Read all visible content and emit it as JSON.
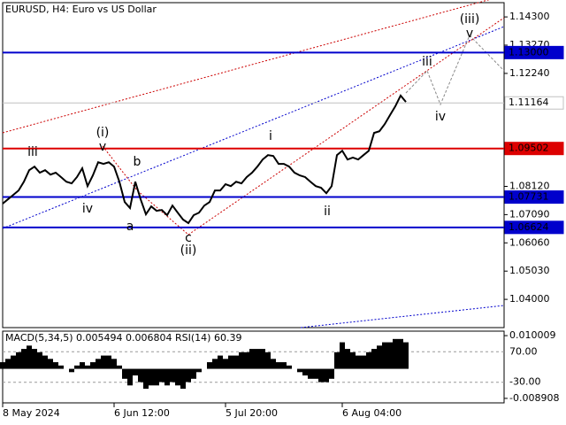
{
  "chart_data": [
    {
      "type": "line",
      "title": "EURUSD, H4:  Euro vs US Dollar",
      "color": "#000000",
      "x": [
        0,
        1,
        2,
        3,
        4,
        5,
        6,
        7,
        8,
        9,
        10,
        11,
        12,
        13,
        14,
        15,
        16,
        17,
        18,
        19,
        20,
        21,
        22,
        23,
        24,
        25,
        26,
        27,
        28,
        29,
        30,
        31,
        32,
        33,
        34,
        35,
        36,
        37,
        38,
        39,
        40,
        41,
        42,
        43,
        44,
        45,
        46,
        47,
        48,
        49,
        50,
        51,
        52,
        53,
        54,
        55,
        56,
        57,
        58,
        59,
        60,
        61,
        62,
        63,
        64,
        65,
        66,
        67,
        68,
        69,
        70,
        71,
        72,
        73,
        74,
        75,
        76
      ],
      "values": [
        1.0749,
        1.0765,
        1.0781,
        1.0797,
        1.0829,
        1.0871,
        1.0884,
        1.0862,
        1.0871,
        1.0855,
        1.0862,
        1.0846,
        1.0829,
        1.0823,
        1.0846,
        1.0878,
        1.0813,
        1.0852,
        1.09,
        1.0894,
        1.09,
        1.0884,
        1.0829,
        1.0755,
        1.0733,
        1.0829,
        1.0765,
        1.071,
        1.0739,
        1.0723,
        1.0726,
        1.0707,
        1.0742,
        1.0716,
        1.0691,
        1.0678,
        1.0707,
        1.0716,
        1.0742,
        1.0755,
        1.0797,
        1.0797,
        1.082,
        1.0813,
        1.0829,
        1.0823,
        1.0846,
        1.0862,
        1.0884,
        1.091,
        1.0926,
        1.0923,
        1.0894,
        1.0894,
        1.0884,
        1.0862,
        1.0852,
        1.0846,
        1.0829,
        1.0813,
        1.0807,
        1.0787,
        1.0813,
        1.0926,
        1.0942,
        1.091,
        1.0917,
        1.091,
        1.0926,
        1.0942,
        1.1007,
        1.1013,
        1.1039,
        1.1072,
        1.1104,
        1.1143,
        1.112
      ],
      "xlim": [
        0,
        94.5
      ],
      "xticks": [
        {
          "value": 0,
          "label": "8 May 2024"
        },
        {
          "value": 21,
          "label": "6 Jun 12:00"
        },
        {
          "value": 42,
          "label": "5 Jul 20:00"
        },
        {
          "value": 64,
          "label": "6 Aug 04:00"
        }
      ],
      "ylim": [
        1.0297,
        1.1482
      ],
      "yticks": [
        {
          "value": 1.143,
          "label": "1.14300"
        },
        {
          "value": 1.1327,
          "label": "1.13270"
        },
        {
          "value": 1.1224,
          "label": "1.12240"
        },
        {
          "value": 1.0812,
          "label": "1.08120"
        },
        {
          "value": 1.0709,
          "label": "1.07090"
        },
        {
          "value": 1.0606,
          "label": "1.06060"
        },
        {
          "value": 1.0503,
          "label": "1.05030"
        },
        {
          "value": 1.04,
          "label": "1.04000"
        }
      ],
      "levels": [
        {
          "value": 1.13,
          "label": "1.13000",
          "color": "#0000cc"
        },
        {
          "value": 1.11164,
          "label": "1.11164",
          "color": "#c0c0c0"
        },
        {
          "value": 1.09502,
          "label": "1.09502",
          "color": "#dd0000"
        },
        {
          "value": 1.07731,
          "label": "1.07731",
          "color": "#0000cc"
        },
        {
          "value": 1.06624,
          "label": "1.06624",
          "color": "#0000cc"
        }
      ],
      "annotations": [
        {
          "text": "iii",
          "color": "#555555"
        },
        {
          "text": "(i)",
          "color": "#cc0000"
        },
        {
          "text": "v",
          "color": "#555555"
        },
        {
          "text": "b",
          "color": "#555555"
        },
        {
          "text": "iv",
          "color": "#555555"
        },
        {
          "text": "a",
          "color": "#555555"
        },
        {
          "text": "c",
          "color": "#555555"
        },
        {
          "text": "(ii)",
          "color": "#cc0000"
        },
        {
          "text": "i",
          "color": "#555555"
        },
        {
          "text": "ii",
          "color": "#555555"
        },
        {
          "text": "iii",
          "color": "#555555"
        },
        {
          "text": "iv",
          "color": "#555555"
        },
        {
          "text": "v",
          "color": "#555555"
        },
        {
          "text": "(iii)",
          "color": "#cc0000"
        }
      ]
    },
    {
      "type": "bar",
      "title": "MACD(5,34,5) 0.005494 0.006804 RSI(14) 60.39",
      "color": "#000000",
      "values": [
        0.002,
        0.003,
        0.004,
        0.005,
        0.006,
        0.007,
        0.006,
        0.005,
        0.004,
        0.003,
        0.002,
        0.001,
        0.0,
        -0.001,
        0.001,
        0.002,
        0.001,
        0.002,
        0.003,
        0.004,
        0.004,
        0.003,
        0.001,
        -0.003,
        -0.005,
        -0.002,
        -0.004,
        -0.006,
        -0.005,
        -0.005,
        -0.004,
        -0.005,
        -0.004,
        -0.005,
        -0.006,
        -0.004,
        -0.003,
        -0.001,
        0.0,
        0.002,
        0.003,
        0.004,
        0.003,
        0.004,
        0.004,
        0.005,
        0.005,
        0.006,
        0.006,
        0.006,
        0.005,
        0.003,
        0.002,
        0.002,
        0.001,
        0.0,
        -0.001,
        -0.002,
        -0.003,
        -0.003,
        -0.004,
        -0.004,
        -0.003,
        0.005,
        0.008,
        0.006,
        0.005,
        0.004,
        0.004,
        0.005,
        0.006,
        0.007,
        0.008,
        0.008,
        0.009,
        0.009,
        0.008
      ],
      "ylim": [
        -0.01026,
        0.01136
      ],
      "yticks": [
        {
          "value": 0.010009,
          "label": "0.010009"
        },
        {
          "value": -0.008908,
          "label": "-0.008908"
        }
      ],
      "y2lim": [
        -97.6,
        137.6
      ],
      "y2ticks": [
        {
          "value": 70,
          "label": "70.00"
        },
        {
          "value": -30,
          "label": "-30.00"
        }
      ]
    }
  ]
}
